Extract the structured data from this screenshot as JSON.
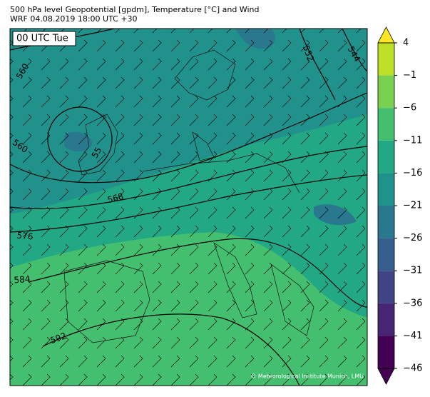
{
  "header": {
    "title": "500 hPa level Geopotential [gpdm], Temperature [°C] and Wind",
    "subtitle": "WRF 04.08.2019 18:00 UTC +30"
  },
  "map": {
    "time_label": "00 UTC Tue",
    "contour_labels": [
      560,
      560,
      55,
      568,
      576,
      584,
      592,
      552,
      544
    ],
    "credit": "© Meteorological Institute Munich, LMU"
  },
  "colorbar": {
    "ylim": [
      -46,
      4
    ],
    "ticks": [
      4,
      {
        "value": -1,
        "label": "−1"
      },
      {
        "value": -6,
        "label": "−6"
      },
      {
        "value": -11,
        "label": "−11"
      },
      {
        "value": -16,
        "label": "−16"
      },
      {
        "value": -21,
        "label": "−21"
      },
      {
        "value": -26,
        "label": "−26"
      },
      {
        "value": -31,
        "label": "−31"
      },
      {
        "value": -36,
        "label": "−36"
      },
      {
        "value": -41,
        "label": "−41"
      },
      {
        "value": -46,
        "label": "−46"
      }
    ],
    "colors": [
      "#bddf26",
      "#7ad151",
      "#44bf70",
      "#22a884",
      "#21918c",
      "#2a788e",
      "#355f8d",
      "#414487",
      "#482475",
      "#440154"
    ],
    "over_color": "#fde725",
    "under_color": "#440154"
  }
}
